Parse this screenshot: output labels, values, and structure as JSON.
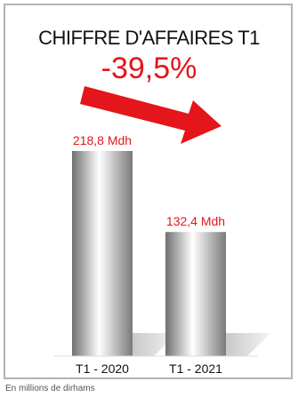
{
  "chart_data": {
    "type": "bar",
    "title": "CHIFFRE D'AFFAIRES T1",
    "change_label": "-39,5%",
    "categories": [
      "T1 - 2020",
      "T1 - 2021"
    ],
    "values": [
      218.8,
      132.4
    ],
    "value_labels": [
      "218,8 Mdh",
      "132,4 Mdh"
    ],
    "ylim": [
      0,
      240
    ],
    "grid": false,
    "colors": {
      "accent": "#e4151b",
      "bar_light": "#ffffff",
      "bar_dark": "#7a7a7a",
      "shadow": "#cfcfcf",
      "border": "#b3b3b3"
    }
  },
  "footnote": "En millions de dirhams"
}
